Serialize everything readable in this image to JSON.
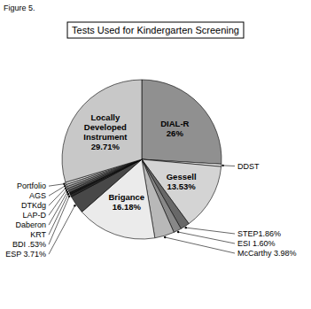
{
  "chart_data": {
    "type": "pie",
    "title": "Tests Used for Kindergarten Screening",
    "categories": [
      "DIAL-R\n26%",
      "DDST",
      "Gessell\n13.53%",
      "STEP1.86%",
      "ESI 1.60%",
      "McCarthy 3.98%",
      "Brigance\n16.18%",
      "ESP 3.71%",
      "BDI .53%",
      "KRT",
      "Daberon",
      "LAP-D",
      "DTKdg",
      "AGS",
      "Portfolio",
      "Locally\nDeveloped\nInstrument\n29.71%"
    ],
    "values": [
      26.0,
      0.5,
      13.53,
      1.86,
      1.6,
      3.98,
      16.18,
      3.71,
      0.53,
      0.43,
      0.43,
      0.43,
      0.43,
      0.43,
      0.45,
      29.71
    ],
    "colors": [
      "#909090",
      "#e8e8e8",
      "#d4d4d4",
      "#686868",
      "#888888",
      "#b8b8b8",
      "#ebebeb",
      "#484848",
      "#282828",
      "#181818",
      "#585858",
      "#787878",
      "#989898",
      "#c4c4c4",
      "#dcdcdc",
      "#c8c8c8"
    ],
    "annotations": [
      "Figure 5."
    ]
  }
}
